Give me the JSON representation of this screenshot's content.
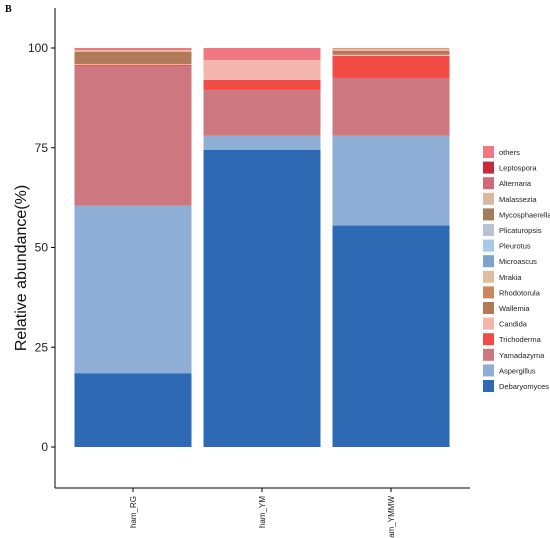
{
  "panel_label": "B",
  "chart_data": {
    "type": "bar",
    "stacked": true,
    "ylabel": "Relative abundance(%)",
    "xlabel": "",
    "ylim": [
      -10,
      110
    ],
    "yticks": [
      0,
      25,
      50,
      75,
      100
    ],
    "ytick_labels": [
      "0",
      "25",
      "50",
      "75",
      "100"
    ],
    "categories": [
      "ham_RG",
      "ham_YM",
      "ham_YMMW"
    ],
    "legend_position": "right",
    "series": [
      {
        "name": "Debaryomyces",
        "color": "#2e69b3",
        "values": [
          18.5,
          74.5,
          55.5
        ]
      },
      {
        "name": "Aspergillus",
        "color": "#8faed6",
        "values": [
          42.0,
          3.5,
          22.5
        ]
      },
      {
        "name": "Yamadazyma",
        "color": "#cd7880",
        "values": [
          35.0,
          11.5,
          14.5
        ]
      },
      {
        "name": "Trichoderma",
        "color": "#f24a45",
        "values": [
          0.3,
          2.5,
          5.5
        ]
      },
      {
        "name": "Candida",
        "color": "#f4b5ae",
        "values": [
          0.2,
          5.0,
          0.3
        ]
      },
      {
        "name": "Wallemia",
        "color": "#b07a58",
        "values": [
          3.0,
          0.0,
          1.0
        ]
      },
      {
        "name": "Rhodotorula",
        "color": "#c9875a",
        "values": [
          0.0,
          0.0,
          0.0
        ]
      },
      {
        "name": "Mrakia",
        "color": "#dfbd9f",
        "values": [
          0.5,
          0.0,
          0.5
        ]
      },
      {
        "name": "Microascus",
        "color": "#7ba3cf",
        "values": [
          0.0,
          0.0,
          0.0
        ]
      },
      {
        "name": "Pleurotus",
        "color": "#a7c8e8",
        "values": [
          0.0,
          0.0,
          0.0
        ]
      },
      {
        "name": "Plicaturopsis",
        "color": "#b9c4d3",
        "values": [
          0.0,
          0.0,
          0.0
        ]
      },
      {
        "name": "Mycosphaerella",
        "color": "#a27c5b",
        "values": [
          0.0,
          0.0,
          0.0
        ]
      },
      {
        "name": "Malassezia",
        "color": "#d9b8a3",
        "values": [
          0.0,
          0.0,
          0.0
        ]
      },
      {
        "name": "Alternaria",
        "color": "#cf6b76",
        "values": [
          0.0,
          0.0,
          0.0
        ]
      },
      {
        "name": "Leptospora",
        "color": "#c9283e",
        "values": [
          0.0,
          0.0,
          0.0
        ]
      },
      {
        "name": "others",
        "color": "#ef7882",
        "values": [
          0.5,
          3.0,
          0.2
        ]
      }
    ]
  }
}
